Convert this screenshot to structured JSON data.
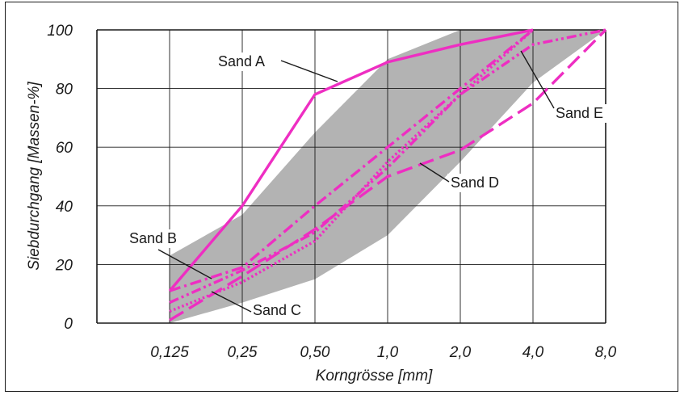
{
  "chart_data": {
    "type": "line",
    "xlabel": "Korngrösse [mm]",
    "ylabel": "Siebdurchgang [Massen-%]",
    "x_scale": "log2",
    "x_ticks": [
      "0,125",
      "0,25",
      "0,50",
      "1,0",
      "2,0",
      "4,0",
      "8,0"
    ],
    "x_values": [
      0.125,
      0.25,
      0.5,
      1.0,
      2.0,
      4.0,
      8.0
    ],
    "y_ticks": [
      "0",
      "20",
      "40",
      "60",
      "80",
      "100"
    ],
    "ylim": [
      0,
      100
    ],
    "grid": true,
    "colors": {
      "series": "#ee2ec2",
      "band": "#b3b3b3",
      "grid": "#1a1a1a"
    },
    "band": {
      "upper": [
        [
          0.125,
          23
        ],
        [
          0.25,
          37
        ],
        [
          0.5,
          65
        ],
        [
          1.0,
          90
        ],
        [
          2.0,
          100
        ],
        [
          4.0,
          100
        ],
        [
          8.0,
          100
        ]
      ],
      "lower": [
        [
          0.125,
          0
        ],
        [
          0.25,
          7
        ],
        [
          0.5,
          15
        ],
        [
          1.0,
          30
        ],
        [
          2.0,
          55
        ],
        [
          4.0,
          82
        ],
        [
          8.0,
          100
        ]
      ]
    },
    "series": [
      {
        "name": "Sand A",
        "style": "solid",
        "points": [
          [
            0.125,
            11
          ],
          [
            0.25,
            40
          ],
          [
            0.5,
            78
          ],
          [
            1.0,
            89
          ],
          [
            2.0,
            95
          ],
          [
            4.0,
            100
          ]
        ]
      },
      {
        "name": "Sand B",
        "style": "dashdot",
        "points": [
          [
            0.125,
            11
          ],
          [
            0.25,
            19
          ],
          [
            0.5,
            40
          ],
          [
            1.0,
            60
          ],
          [
            2.0,
            80
          ],
          [
            4.0,
            100
          ]
        ]
      },
      {
        "name": "Sand C",
        "style": "dotted",
        "points": [
          [
            0.125,
            4
          ],
          [
            0.25,
            14
          ],
          [
            0.5,
            28
          ],
          [
            1.0,
            55
          ],
          [
            2.0,
            78
          ],
          [
            4.0,
            100
          ]
        ]
      },
      {
        "name": "Sand D",
        "style": "dashed",
        "points": [
          [
            0.125,
            1
          ],
          [
            0.25,
            16
          ],
          [
            0.5,
            32
          ],
          [
            1.0,
            50
          ],
          [
            2.0,
            59
          ],
          [
            4.0,
            75
          ],
          [
            8.0,
            100
          ]
        ]
      },
      {
        "name": "Sand E",
        "style": "dashdotdot",
        "points": [
          [
            0.125,
            7
          ],
          [
            0.25,
            18
          ],
          [
            0.5,
            31
          ],
          [
            1.0,
            53
          ],
          [
            2.0,
            78
          ],
          [
            4.0,
            95
          ],
          [
            8.0,
            100
          ]
        ]
      }
    ]
  }
}
